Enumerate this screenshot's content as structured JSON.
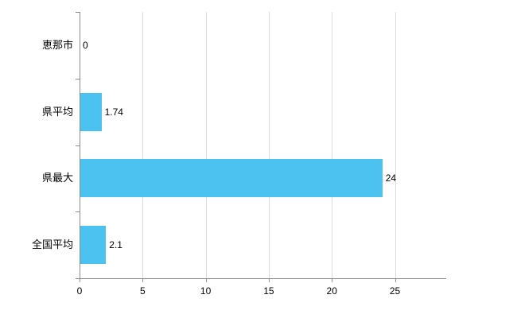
{
  "chart_data": {
    "type": "bar",
    "orientation": "horizontal",
    "title": "",
    "xlabel": "",
    "ylabel": "",
    "categories": [
      "恵那市",
      "県平均",
      "県最大",
      "全国平均"
    ],
    "values": [
      0,
      1.74,
      24,
      2.1
    ],
    "value_labels": [
      "0",
      "1.74",
      "24",
      "2.1"
    ],
    "x_ticks": [
      0,
      5,
      10,
      15,
      20,
      25
    ],
    "x_tick_labels": [
      "0",
      "5",
      "10",
      "15",
      "20",
      "25"
    ],
    "xlim": [
      0,
      29
    ],
    "grid": true,
    "legend": "none",
    "bar_color": "#4cc2f0",
    "axis_color": "#8c8c8c",
    "gridline_color": "#dcdcdc",
    "background_color": "#ffffff"
  }
}
